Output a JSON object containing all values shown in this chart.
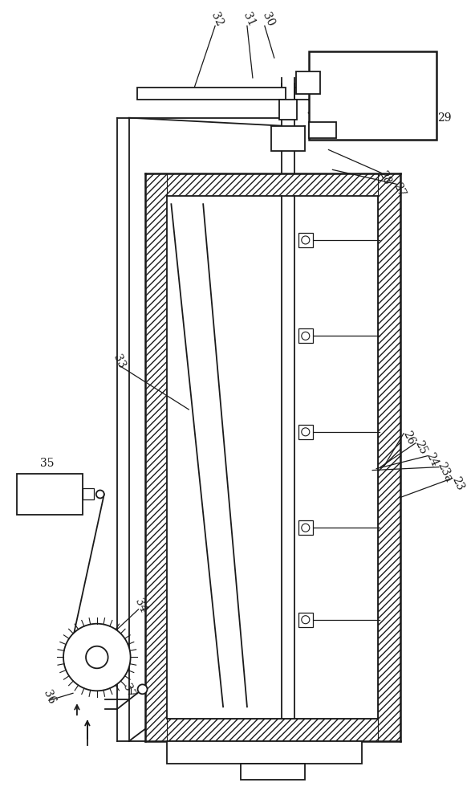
{
  "bg_color": "#ffffff",
  "line_color": "#1a1a1a",
  "figsize": [
    5.92,
    10.0
  ],
  "dpi": 100
}
